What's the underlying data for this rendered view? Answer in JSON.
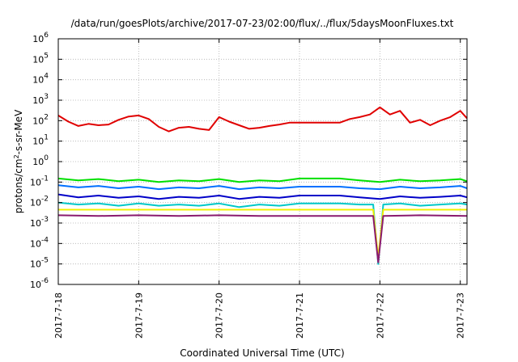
{
  "chart_data": {
    "type": "line",
    "title": "/data/run/goesPlots/archive/2017-07-23/02:00/flux/../flux/5daysMoonFluxes.txt",
    "xlabel": "Coordinated Universal Time (UTC)",
    "ylabel": "protons/cm2-s-sr-MeV",
    "ylabel_parts": {
      "pre": "protons/cm",
      "sup": "2",
      "post": "-s-sr-MeV"
    },
    "yscale": "log",
    "grid": true,
    "legend": "none",
    "xlim": [
      "2017-07-18",
      "2017-07-23 02:00"
    ],
    "ylim": [
      1e-06,
      1000000.0
    ],
    "x_ticks": [
      "2017-7-18",
      "2017-7-19",
      "2017-7-20",
      "2017-7-21",
      "2017-7-22",
      "2017-7-23"
    ],
    "y_ticks": [
      {
        "base": "10",
        "exp": "-6"
      },
      {
        "base": "10",
        "exp": "-5"
      },
      {
        "base": "10",
        "exp": "-4"
      },
      {
        "base": "10",
        "exp": "-3"
      },
      {
        "base": "10",
        "exp": "-2"
      },
      {
        "base": "10",
        "exp": "-1"
      },
      {
        "base": "10",
        "exp": "0"
      },
      {
        "base": "10",
        "exp": "1"
      },
      {
        "base": "10",
        "exp": "2"
      },
      {
        "base": "10",
        "exp": "3"
      },
      {
        "base": "10",
        "exp": "4"
      },
      {
        "base": "10",
        "exp": "5"
      },
      {
        "base": "10",
        "exp": "6"
      }
    ],
    "series": [
      {
        "color": "#e00000",
        "values": [
          [
            "2017-07-18 00:00",
            180
          ],
          [
            "2017-07-18 03:00",
            90
          ],
          [
            "2017-07-18 06:00",
            55
          ],
          [
            "2017-07-18 09:00",
            70
          ],
          [
            "2017-07-18 12:00",
            60
          ],
          [
            "2017-07-18 15:00",
            65
          ],
          [
            "2017-07-18 18:00",
            110
          ],
          [
            "2017-07-18 21:00",
            160
          ],
          [
            "2017-07-19 00:00",
            180
          ],
          [
            "2017-07-19 03:00",
            120
          ],
          [
            "2017-07-19 06:00",
            50
          ],
          [
            "2017-07-19 09:00",
            30
          ],
          [
            "2017-07-19 12:00",
            45
          ],
          [
            "2017-07-19 15:00",
            50
          ],
          [
            "2017-07-19 18:00",
            40
          ],
          [
            "2017-07-19 21:00",
            35
          ],
          [
            "2017-07-20 00:00",
            150
          ],
          [
            "2017-07-20 03:00",
            90
          ],
          [
            "2017-07-20 06:00",
            60
          ],
          [
            "2017-07-20 09:00",
            40
          ],
          [
            "2017-07-20 12:00",
            45
          ],
          [
            "2017-07-20 15:00",
            55
          ],
          [
            "2017-07-20 18:00",
            65
          ],
          [
            "2017-07-20 21:00",
            80
          ],
          [
            "2017-07-21 00:00",
            80
          ],
          [
            "2017-07-21 06:00",
            80
          ],
          [
            "2017-07-21 12:00",
            80
          ],
          [
            "2017-07-21 15:00",
            120
          ],
          [
            "2017-07-21 18:00",
            150
          ],
          [
            "2017-07-21 21:00",
            200
          ],
          [
            "2017-07-22 00:00",
            450
          ],
          [
            "2017-07-22 03:00",
            200
          ],
          [
            "2017-07-22 06:00",
            300
          ],
          [
            "2017-07-22 09:00",
            80
          ],
          [
            "2017-07-22 12:00",
            110
          ],
          [
            "2017-07-22 15:00",
            60
          ],
          [
            "2017-07-22 18:00",
            100
          ],
          [
            "2017-07-22 21:00",
            150
          ],
          [
            "2017-07-23 00:00",
            300
          ],
          [
            "2017-07-23 02:00",
            130
          ]
        ]
      },
      {
        "color": "#00e000",
        "values": [
          [
            "2017-07-18 00:00",
            0.15
          ],
          [
            "2017-07-18 06:00",
            0.12
          ],
          [
            "2017-07-18 12:00",
            0.14
          ],
          [
            "2017-07-18 18:00",
            0.11
          ],
          [
            "2017-07-19 00:00",
            0.13
          ],
          [
            "2017-07-19 06:00",
            0.1
          ],
          [
            "2017-07-19 12:00",
            0.12
          ],
          [
            "2017-07-19 18:00",
            0.11
          ],
          [
            "2017-07-20 00:00",
            0.14
          ],
          [
            "2017-07-20 06:00",
            0.1
          ],
          [
            "2017-07-20 12:00",
            0.12
          ],
          [
            "2017-07-20 18:00",
            0.11
          ],
          [
            "2017-07-21 00:00",
            0.15
          ],
          [
            "2017-07-21 12:00",
            0.15
          ],
          [
            "2017-07-21 18:00",
            0.12
          ],
          [
            "2017-07-22 00:00",
            0.1
          ],
          [
            "2017-07-22 06:00",
            0.13
          ],
          [
            "2017-07-22 12:00",
            0.11
          ],
          [
            "2017-07-22 18:00",
            0.12
          ],
          [
            "2017-07-23 00:00",
            0.14
          ],
          [
            "2017-07-23 02:00",
            0.11
          ]
        ]
      },
      {
        "color": "#0070ff",
        "values": [
          [
            "2017-07-18 00:00",
            0.07
          ],
          [
            "2017-07-18 06:00",
            0.055
          ],
          [
            "2017-07-18 12:00",
            0.065
          ],
          [
            "2017-07-18 18:00",
            0.05
          ],
          [
            "2017-07-19 00:00",
            0.06
          ],
          [
            "2017-07-19 06:00",
            0.045
          ],
          [
            "2017-07-19 12:00",
            0.055
          ],
          [
            "2017-07-19 18:00",
            0.05
          ],
          [
            "2017-07-20 00:00",
            0.065
          ],
          [
            "2017-07-20 06:00",
            0.045
          ],
          [
            "2017-07-20 12:00",
            0.055
          ],
          [
            "2017-07-20 18:00",
            0.05
          ],
          [
            "2017-07-21 00:00",
            0.06
          ],
          [
            "2017-07-21 12:00",
            0.06
          ],
          [
            "2017-07-21 18:00",
            0.05
          ],
          [
            "2017-07-22 00:00",
            0.045
          ],
          [
            "2017-07-22 06:00",
            0.06
          ],
          [
            "2017-07-22 12:00",
            0.05
          ],
          [
            "2017-07-22 18:00",
            0.055
          ],
          [
            "2017-07-23 00:00",
            0.065
          ],
          [
            "2017-07-23 02:00",
            0.05
          ]
        ]
      },
      {
        "color": "#0000c8",
        "values": [
          [
            "2017-07-18 00:00",
            0.025
          ],
          [
            "2017-07-18 06:00",
            0.018
          ],
          [
            "2017-07-18 12:00",
            0.022
          ],
          [
            "2017-07-18 18:00",
            0.017
          ],
          [
            "2017-07-19 00:00",
            0.02
          ],
          [
            "2017-07-19 06:00",
            0.015
          ],
          [
            "2017-07-19 12:00",
            0.019
          ],
          [
            "2017-07-19 18:00",
            0.017
          ],
          [
            "2017-07-20 00:00",
            0.022
          ],
          [
            "2017-07-20 06:00",
            0.015
          ],
          [
            "2017-07-20 12:00",
            0.019
          ],
          [
            "2017-07-20 18:00",
            0.017
          ],
          [
            "2017-07-21 00:00",
            0.022
          ],
          [
            "2017-07-21 12:00",
            0.022
          ],
          [
            "2017-07-21 18:00",
            0.018
          ],
          [
            "2017-07-22 00:00",
            0.015
          ],
          [
            "2017-07-22 06:00",
            0.02
          ],
          [
            "2017-07-22 12:00",
            0.017
          ],
          [
            "2017-07-22 18:00",
            0.019
          ],
          [
            "2017-07-23 00:00",
            0.022
          ],
          [
            "2017-07-23 02:00",
            0.018
          ]
        ]
      },
      {
        "color": "#00c8c8",
        "values": [
          [
            "2017-07-18 00:00",
            0.01
          ],
          [
            "2017-07-18 06:00",
            0.008
          ],
          [
            "2017-07-18 12:00",
            0.009
          ],
          [
            "2017-07-18 18:00",
            0.007
          ],
          [
            "2017-07-19 00:00",
            0.009
          ],
          [
            "2017-07-19 06:00",
            0.007
          ],
          [
            "2017-07-19 12:00",
            0.008
          ],
          [
            "2017-07-19 18:00",
            0.007
          ],
          [
            "2017-07-20 00:00",
            0.009
          ],
          [
            "2017-07-20 06:00",
            0.006
          ],
          [
            "2017-07-20 12:00",
            0.008
          ],
          [
            "2017-07-20 18:00",
            0.007
          ],
          [
            "2017-07-21 00:00",
            0.009
          ],
          [
            "2017-07-21 12:00",
            0.009
          ],
          [
            "2017-07-21 18:00",
            0.008
          ],
          [
            "2017-07-21 22:00",
            0.008
          ],
          [
            "2017-07-21 23:30",
            1e-05
          ],
          [
            "2017-07-22 01:00",
            0.008
          ],
          [
            "2017-07-22 06:00",
            0.009
          ],
          [
            "2017-07-22 12:00",
            0.007
          ],
          [
            "2017-07-22 18:00",
            0.008
          ],
          [
            "2017-07-23 00:00",
            0.009
          ],
          [
            "2017-07-23 02:00",
            0.008
          ]
        ]
      },
      {
        "color": "#f0f000",
        "values": [
          [
            "2017-07-18 00:00",
            0.0045
          ],
          [
            "2017-07-19 00:00",
            0.0045
          ],
          [
            "2017-07-20 00:00",
            0.0045
          ],
          [
            "2017-07-21 00:00",
            0.0045
          ],
          [
            "2017-07-21 22:00",
            0.0045
          ],
          [
            "2017-07-21 23:30",
            2e-05
          ],
          [
            "2017-07-22 01:00",
            0.0045
          ],
          [
            "2017-07-23 02:00",
            0.0045
          ]
        ]
      },
      {
        "color": "#8a1a6e",
        "values": [
          [
            "2017-07-18 00:00",
            0.0024
          ],
          [
            "2017-07-18 12:00",
            0.0022
          ],
          [
            "2017-07-19 00:00",
            0.0024
          ],
          [
            "2017-07-19 12:00",
            0.0022
          ],
          [
            "2017-07-20 00:00",
            0.0024
          ],
          [
            "2017-07-20 12:00",
            0.0022
          ],
          [
            "2017-07-21 00:00",
            0.0022
          ],
          [
            "2017-07-21 22:00",
            0.0022
          ],
          [
            "2017-07-21 23:30",
            1.2e-05
          ],
          [
            "2017-07-22 01:00",
            0.0022
          ],
          [
            "2017-07-22 12:00",
            0.0024
          ],
          [
            "2017-07-23 02:00",
            0.0022
          ]
        ]
      }
    ]
  }
}
